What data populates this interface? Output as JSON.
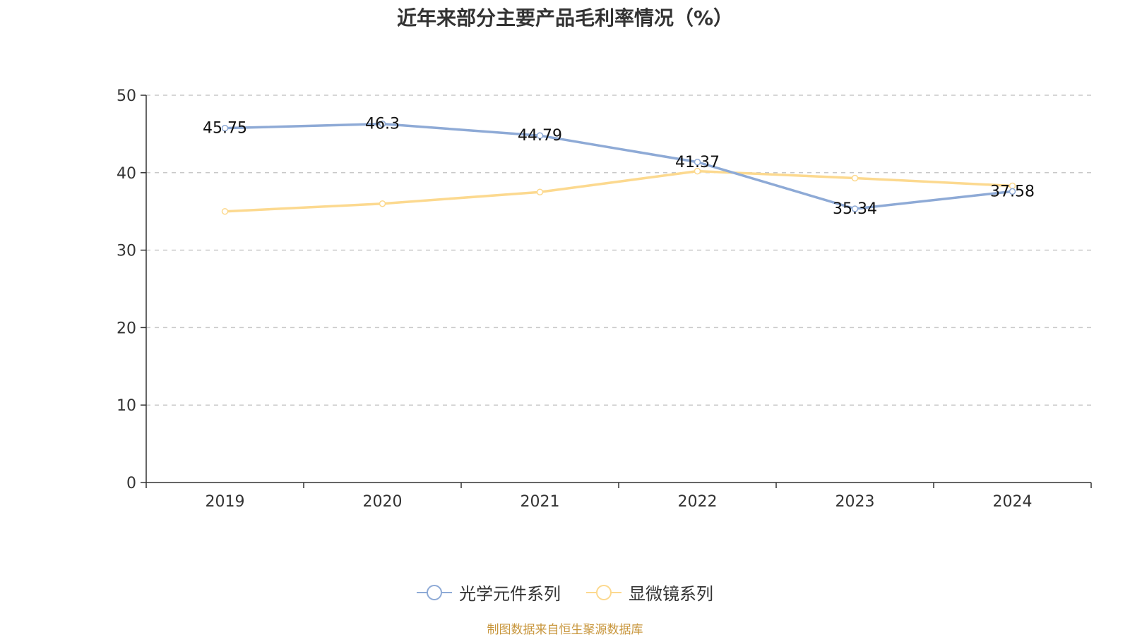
{
  "chart_data": {
    "type": "line",
    "title": "近年来部分主要产品毛利率情况（%）",
    "categories": [
      "2019",
      "2020",
      "2021",
      "2022",
      "2023",
      "2024"
    ],
    "ylim": [
      0,
      50
    ],
    "yticks": [
      0,
      10,
      20,
      30,
      40,
      50
    ],
    "grid": true,
    "legend_position": "bottom",
    "series": [
      {
        "name": "光学元件系列",
        "color": "#8eaad6",
        "values": [
          45.75,
          46.3,
          44.79,
          41.37,
          35.34,
          37.58
        ],
        "labels": [
          "45.75",
          "46.3",
          "44.79",
          "41.37",
          "35.34",
          "37.58"
        ]
      },
      {
        "name": "显微镜系列",
        "color": "#fcd98f",
        "values": [
          35.0,
          36.0,
          37.5,
          40.2,
          39.3,
          38.3
        ],
        "labels": []
      }
    ]
  },
  "footer": {
    "source": "制图数据来自恒生聚源数据库"
  }
}
